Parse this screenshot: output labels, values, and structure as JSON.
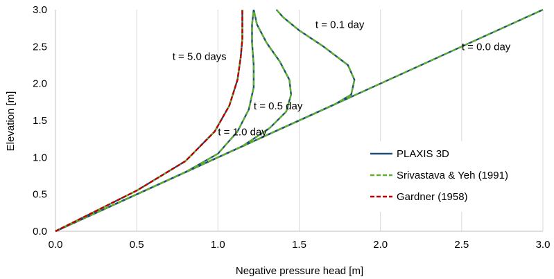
{
  "chart_data": {
    "type": "line",
    "xlabel": "Negative pressure head [m]",
    "ylabel": "Elevation [m]",
    "xlim": [
      0,
      3
    ],
    "ylim": [
      0,
      3
    ],
    "xticks": [
      "0.0",
      "0.5",
      "1.0",
      "1.5",
      "2.0",
      "2.5",
      "3.0"
    ],
    "yticks": [
      "0.0",
      "0.5",
      "1.0",
      "1.5",
      "2.0",
      "2.5",
      "3.0"
    ],
    "grid": "vertical",
    "legend_position": "right",
    "legend": [
      {
        "label": "PLAXIS 3D",
        "color": "#1F4E79",
        "style": "solid"
      },
      {
        "label": "Srivastava & Yeh (1991)",
        "color": "#5FAE2E",
        "style": "dashed"
      },
      {
        "label": "Gardner (1958)",
        "color": "#C00000",
        "style": "dashed"
      }
    ],
    "annotations": [
      {
        "text": "t = 0.1 day",
        "x": 1.6,
        "y": 2.75
      },
      {
        "text": "t = 0.0 day",
        "x": 2.5,
        "y": 2.45
      },
      {
        "text": "t = 5.0 days",
        "x": 0.72,
        "y": 2.32
      },
      {
        "text": "t = 0.5 day",
        "x": 1.22,
        "y": 1.65
      },
      {
        "text": "t = 1.0 day",
        "x": 1.0,
        "y": 1.3
      }
    ],
    "series": [
      {
        "curve": "t = 0.0 day",
        "x": [
          0.0,
          0.5,
          1.0,
          1.5,
          2.0,
          2.5,
          3.0
        ],
        "y": [
          0.0,
          0.5,
          1.0,
          1.5,
          2.0,
          2.5,
          3.0
        ]
      },
      {
        "curve": "t = 0.1 day",
        "x": [
          0.0,
          0.5,
          1.0,
          1.5,
          1.72,
          1.82,
          1.84,
          1.8,
          1.65,
          1.5,
          1.4,
          1.36
        ],
        "y": [
          0.0,
          0.5,
          1.0,
          1.5,
          1.72,
          1.85,
          2.05,
          2.25,
          2.5,
          2.72,
          2.9,
          3.0
        ]
      },
      {
        "curve": "t = 0.5 day",
        "x": [
          0.0,
          0.5,
          0.9,
          1.15,
          1.32,
          1.42,
          1.45,
          1.44,
          1.38,
          1.3,
          1.24,
          1.22
        ],
        "y": [
          0.0,
          0.5,
          0.9,
          1.15,
          1.4,
          1.62,
          1.85,
          2.05,
          2.3,
          2.55,
          2.8,
          3.0
        ]
      },
      {
        "curve": "t = 1.0 day",
        "x": [
          0.0,
          0.5,
          0.8,
          1.0,
          1.12,
          1.19,
          1.22,
          1.22,
          1.21,
          1.21,
          1.22
        ],
        "y": [
          0.0,
          0.5,
          0.8,
          1.05,
          1.35,
          1.65,
          1.95,
          2.25,
          2.55,
          2.8,
          3.0
        ]
      },
      {
        "curve": "t = 5.0 days",
        "x": [
          0.0,
          0.5,
          0.8,
          0.98,
          1.07,
          1.12,
          1.14,
          1.15,
          1.15,
          1.15
        ],
        "y": [
          0.0,
          0.55,
          0.95,
          1.35,
          1.7,
          2.05,
          2.35,
          2.6,
          2.8,
          3.0
        ]
      }
    ]
  }
}
